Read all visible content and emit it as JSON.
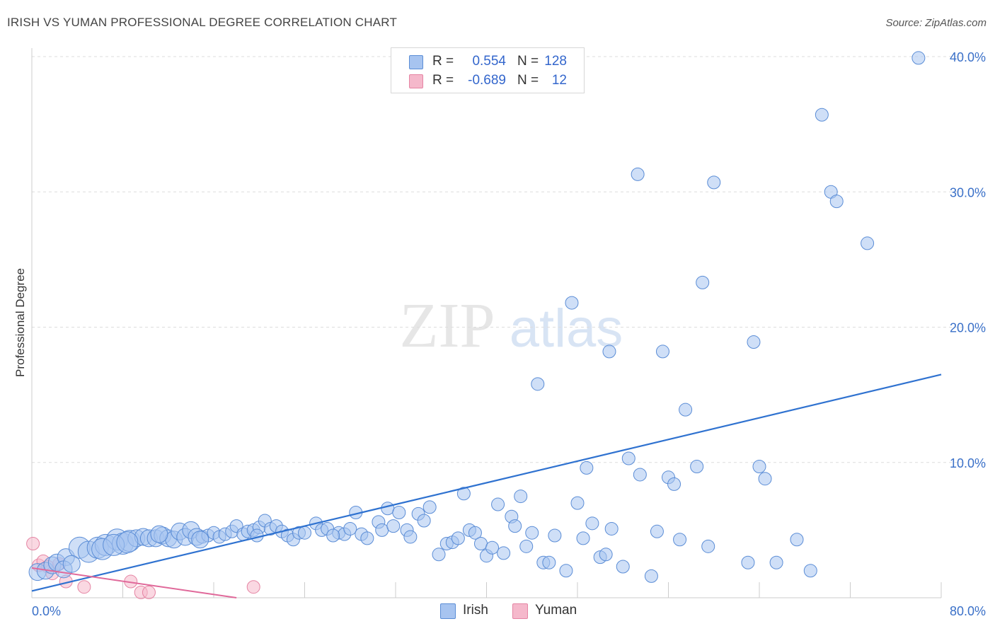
{
  "title": "IRISH VS YUMAN PROFESSIONAL DEGREE CORRELATION CHART",
  "source": "Source: ZipAtlas.com",
  "watermark": {
    "part1": "ZIP",
    "part2": "atlas"
  },
  "colors": {
    "irish_fill": "#a7c4f0",
    "irish_stroke": "#5b8dd6",
    "irish_line": "#2f72d0",
    "yuman_fill": "#f5b8cb",
    "yuman_stroke": "#e584a3",
    "yuman_line": "#e0699a",
    "grid": "#dddddd",
    "tick_label": "#3a70c8"
  },
  "legend_top": {
    "rows": [
      {
        "r_label": "R =",
        "r_value": "0.554",
        "n_label": "N =",
        "n_value": "128"
      },
      {
        "r_label": "R =",
        "r_value": "-0.689",
        "n_label": "N =",
        "n_value": "12"
      }
    ]
  },
  "legend_bottom": {
    "irish": "Irish",
    "yuman": "Yuman"
  },
  "chart_data": {
    "type": "scatter",
    "title": "IRISH VS YUMAN PROFESSIONAL DEGREE CORRELATION CHART",
    "xlabel": "",
    "ylabel": "Professional Degree",
    "xlim": [
      0,
      80
    ],
    "ylim": [
      0,
      40
    ],
    "x_tick_labels": [
      {
        "value": 0,
        "label": "0.0%"
      },
      {
        "value": 80,
        "label": "80.0%"
      }
    ],
    "y_tick_labels": [
      {
        "value": 10,
        "label": "10.0%"
      },
      {
        "value": 20,
        "label": "20.0%"
      },
      {
        "value": 30,
        "label": "30.0%"
      },
      {
        "value": 40,
        "label": "40.0%"
      }
    ],
    "grid": "horizontal dashed",
    "legend_position": "top-center and bottom-center",
    "series": [
      {
        "name": "Irish",
        "r": 0.554,
        "n": 128,
        "trend": {
          "x": [
            0,
            80
          ],
          "y": [
            0.5,
            16.5
          ]
        },
        "points": [
          [
            0.5,
            1.9
          ],
          [
            1.2,
            2.0
          ],
          [
            1.8,
            2.4
          ],
          [
            2.2,
            2.6
          ],
          [
            3.0,
            3.0
          ],
          [
            4.2,
            3.7
          ],
          [
            5.0,
            3.4
          ],
          [
            5.8,
            3.7
          ],
          [
            6.5,
            3.9
          ],
          [
            7.5,
            4.3
          ],
          [
            8.0,
            4.0
          ],
          [
            8.6,
            4.2
          ],
          [
            9.2,
            4.4
          ],
          [
            9.8,
            4.5
          ],
          [
            10.3,
            4.4
          ],
          [
            10.9,
            4.4
          ],
          [
            11.5,
            4.6
          ],
          [
            12.0,
            4.4
          ],
          [
            12.5,
            4.3
          ],
          [
            13.0,
            4.9
          ],
          [
            13.5,
            4.5
          ],
          [
            14.0,
            5.0
          ],
          [
            14.5,
            4.5
          ],
          [
            15.0,
            4.5
          ],
          [
            15.5,
            4.6
          ],
          [
            16.0,
            4.8
          ],
          [
            16.5,
            4.5
          ],
          [
            17.0,
            4.7
          ],
          [
            17.6,
            4.9
          ],
          [
            18.0,
            5.3
          ],
          [
            18.6,
            4.7
          ],
          [
            19.0,
            4.9
          ],
          [
            19.5,
            5.0
          ],
          [
            20.0,
            5.2
          ],
          [
            20.5,
            5.7
          ],
          [
            21.0,
            5.1
          ],
          [
            21.5,
            5.3
          ],
          [
            22.0,
            4.9
          ],
          [
            22.5,
            4.6
          ],
          [
            23.0,
            4.3
          ],
          [
            23.5,
            4.8
          ],
          [
            24.0,
            4.8
          ],
          [
            25.0,
            5.5
          ],
          [
            25.5,
            5.0
          ],
          [
            26.0,
            5.1
          ],
          [
            27.0,
            4.8
          ],
          [
            27.5,
            4.7
          ],
          [
            28.0,
            5.1
          ],
          [
            28.5,
            6.3
          ],
          [
            29.0,
            4.7
          ],
          [
            29.5,
            4.4
          ],
          [
            30.5,
            5.6
          ],
          [
            30.8,
            5.0
          ],
          [
            31.3,
            6.6
          ],
          [
            31.8,
            5.3
          ],
          [
            32.3,
            6.3
          ],
          [
            33.0,
            5.0
          ],
          [
            33.3,
            4.5
          ],
          [
            34.0,
            6.2
          ],
          [
            34.5,
            5.7
          ],
          [
            35.0,
            6.7
          ],
          [
            35.8,
            3.2
          ],
          [
            36.5,
            4.0
          ],
          [
            37.0,
            4.1
          ],
          [
            37.5,
            4.4
          ],
          [
            38.0,
            7.7
          ],
          [
            38.5,
            5.0
          ],
          [
            39.0,
            4.8
          ],
          [
            39.5,
            4.0
          ],
          [
            40.0,
            3.1
          ],
          [
            40.5,
            3.7
          ],
          [
            41.0,
            6.9
          ],
          [
            41.5,
            3.3
          ],
          [
            42.2,
            6.0
          ],
          [
            42.5,
            5.3
          ],
          [
            43.0,
            7.5
          ],
          [
            43.5,
            3.8
          ],
          [
            44.0,
            4.8
          ],
          [
            44.5,
            15.8
          ],
          [
            45.0,
            2.6
          ],
          [
            45.5,
            2.6
          ],
          [
            46.0,
            4.6
          ],
          [
            47.0,
            2.0
          ],
          [
            47.5,
            21.8
          ],
          [
            48.0,
            7.0
          ],
          [
            48.5,
            4.4
          ],
          [
            48.8,
            9.6
          ],
          [
            49.3,
            5.5
          ],
          [
            50.0,
            3.0
          ],
          [
            50.5,
            3.2
          ],
          [
            50.8,
            18.2
          ],
          [
            51.0,
            5.1
          ],
          [
            52.0,
            2.3
          ],
          [
            52.5,
            10.3
          ],
          [
            53.3,
            31.3
          ],
          [
            53.5,
            9.1
          ],
          [
            54.5,
            1.6
          ],
          [
            55.0,
            4.9
          ],
          [
            55.5,
            18.2
          ],
          [
            56.0,
            8.9
          ],
          [
            56.5,
            8.4
          ],
          [
            57.0,
            4.3
          ],
          [
            57.5,
            13.9
          ],
          [
            58.5,
            9.7
          ],
          [
            59.0,
            23.3
          ],
          [
            59.5,
            3.8
          ],
          [
            60.0,
            30.7
          ],
          [
            63.0,
            2.6
          ],
          [
            63.5,
            18.9
          ],
          [
            64.0,
            9.7
          ],
          [
            64.5,
            8.8
          ],
          [
            65.5,
            2.6
          ],
          [
            67.3,
            4.3
          ],
          [
            68.5,
            2.0
          ],
          [
            69.5,
            35.7
          ],
          [
            70.3,
            30.0
          ],
          [
            70.8,
            29.3
          ],
          [
            73.5,
            26.2
          ],
          [
            78.0,
            39.9
          ],
          [
            2.8,
            2.1
          ],
          [
            3.5,
            2.5
          ],
          [
            6.2,
            3.6
          ],
          [
            7.2,
            3.9
          ],
          [
            8.4,
            4.1
          ],
          [
            11.2,
            4.7
          ],
          [
            14.8,
            4.3
          ],
          [
            19.8,
            4.6
          ],
          [
            26.5,
            4.6
          ]
        ]
      },
      {
        "name": "Yuman",
        "r": -0.689,
        "n": 12,
        "trend": {
          "x": [
            0,
            18
          ],
          "y": [
            2.2,
            0
          ]
        },
        "points": [
          [
            0.1,
            4.0
          ],
          [
            0.6,
            2.4
          ],
          [
            1.0,
            2.7
          ],
          [
            1.4,
            2.3
          ],
          [
            1.8,
            1.8
          ],
          [
            2.4,
            2.5
          ],
          [
            3.0,
            1.2
          ],
          [
            4.6,
            0.8
          ],
          [
            8.7,
            1.2
          ],
          [
            9.6,
            0.4
          ],
          [
            10.3,
            0.4
          ],
          [
            19.5,
            0.8
          ]
        ]
      }
    ]
  }
}
